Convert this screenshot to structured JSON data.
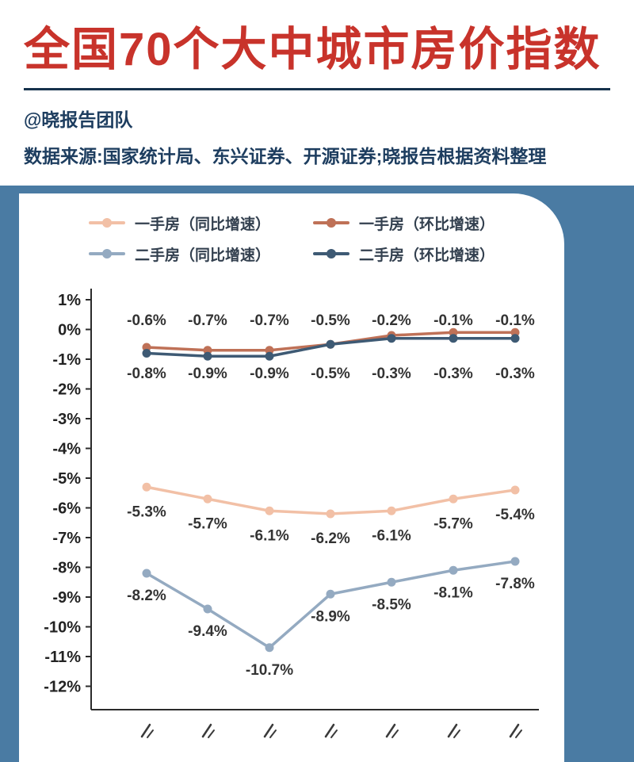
{
  "header": {
    "title": "全国70个大中城市房价指数",
    "byline": "@晓报告团队",
    "source": "数据来源:国家统计局、东兴证券、开源证券;晓报告根据资料整理"
  },
  "colors": {
    "title_red": "#c8332b",
    "background_blue": "#4a7ba3",
    "card_white": "#ffffff",
    "text_navy": "#1d3d5f",
    "axis_dark": "#2b2b2b",
    "data_label": "#333333"
  },
  "chart_data": {
    "type": "line",
    "title": "全国70个大中城市房价指数",
    "grid": false,
    "legend_position": "top",
    "y_axis": {
      "min": -12,
      "max": 1,
      "step": 1,
      "tick_suffix": "%"
    },
    "categories": [
      "",
      "",
      "",
      "",
      "",
      "",
      ""
    ],
    "note": "x-axis category labels are cropped off at the bottom edge of the screenshot (only small rotated fragments visible)",
    "series": [
      {
        "key": "first_yoy",
        "name": "一手房（同比增速）",
        "color": "#f2c0a6",
        "values": [
          -5.3,
          -5.7,
          -6.1,
          -6.2,
          -6.1,
          -5.7,
          -5.4
        ]
      },
      {
        "key": "first_mom",
        "name": "一手房（环比增速）",
        "color": "#bf7157",
        "values": [
          -0.6,
          -0.7,
          -0.7,
          -0.5,
          -0.2,
          -0.1,
          -0.1
        ]
      },
      {
        "key": "second_yoy",
        "name": "二手房（同比增速）",
        "color": "#94aac1",
        "values": [
          -8.2,
          -9.4,
          -10.7,
          -8.9,
          -8.5,
          -8.1,
          -7.8
        ]
      },
      {
        "key": "second_mom",
        "name": "二手房（环比增速）",
        "color": "#3e5a74",
        "values": [
          -0.8,
          -0.9,
          -0.9,
          -0.5,
          -0.3,
          -0.3,
          -0.3
        ]
      }
    ]
  }
}
